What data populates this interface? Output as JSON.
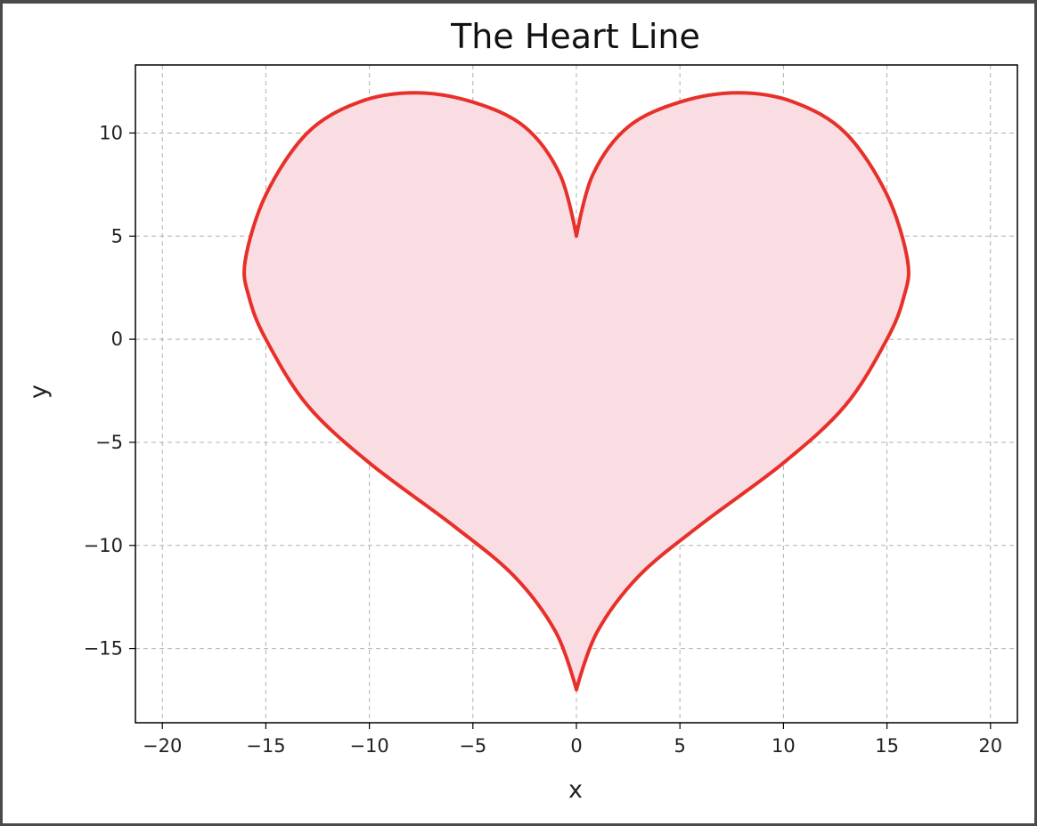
{
  "chart_data": {
    "type": "line",
    "title": "The Heart Line",
    "xlabel": "x",
    "ylabel": "y",
    "xlim": [
      -21.3,
      21.3
    ],
    "ylim": [
      -18.6,
      13.3
    ],
    "xticks": [
      -20,
      -15,
      -10,
      -5,
      0,
      5,
      10,
      15,
      20
    ],
    "yticks": [
      -15,
      -10,
      -5,
      0,
      5,
      10
    ],
    "xtick_labels": [
      "−20",
      "−15",
      "−10",
      "−5",
      "0",
      "5",
      "10",
      "15",
      "20"
    ],
    "ytick_labels": [
      "−15",
      "−10",
      "−5",
      "0",
      "5",
      "10"
    ],
    "grid": true,
    "series": [
      {
        "x": [
          0,
          0.8,
          2.5,
          5.0,
          7.8,
          10.5,
          13.0,
          15.0,
          16.0,
          15.8,
          15.0,
          13.0,
          10.0,
          6.0,
          3.0,
          1.0,
          0
        ],
        "y": [
          5.0,
          8.0,
          10.3,
          11.5,
          11.95,
          11.5,
          10.0,
          7.0,
          3.8,
          2.0,
          0,
          -3.2,
          -6.0,
          -9.0,
          -11.5,
          -14.2,
          -17.0
        ]
      }
    ],
    "colors": {
      "line": "#e8302a",
      "fill": "#f9dde3",
      "grid": "#b0b0b0"
    }
  }
}
